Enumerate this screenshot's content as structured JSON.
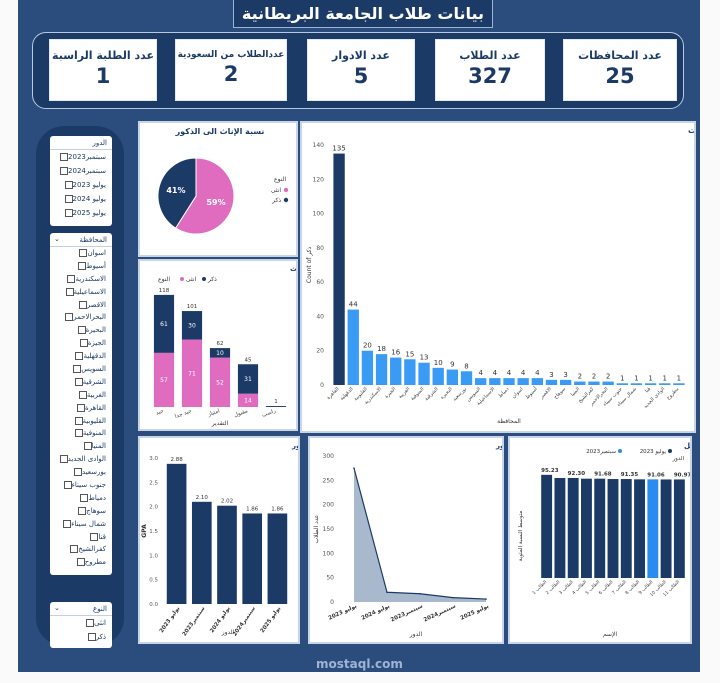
{
  "title": "بيانات طلاب الجامعة البريطانية",
  "kpis": [
    {
      "label": "عدد المحافظات",
      "value": "25"
    },
    {
      "label": "عدد الطلاب",
      "value": "327"
    },
    {
      "label": "عدد الادوار",
      "value": "5"
    },
    {
      "label": "عددالطلاب من السعودية",
      "value": "2"
    },
    {
      "label": "عدد الطلبة الراسبة",
      "value": "1"
    }
  ],
  "slicer_round": {
    "header": "الدور",
    "items": [
      "سبتمبر2023",
      "سبتمبر2024",
      "يوليو 2023",
      "يوليو 2024",
      "يوليو 2025"
    ]
  },
  "slicer_gov": {
    "header": "المحافظة",
    "items": [
      "اسوان",
      "أسيوط",
      "الاسكندرية",
      "الاسماعيلية",
      "الاقصر",
      "البحرالاحمر",
      "البحيرة",
      "الجيزة",
      "الدقهلية",
      "السويس",
      "الشرقية",
      "الغربية",
      "القاهرة",
      "القليوبية",
      "المنوفية",
      "المنيا",
      "الوادى الجديد",
      "بورسعيد",
      "جنوب سيناء",
      "دمياط",
      "سوهاج",
      "شمال سيناء",
      "قنا",
      "كفرالشيخ",
      "مطروح"
    ]
  },
  "slicer_branch": {
    "header": "النوع",
    "items": [
      "انثى",
      "ذكر"
    ]
  },
  "colors": {
    "navy": "#1b3a66",
    "pink": "#e06cc0",
    "blue": "#2b8cf0",
    "accent": "#3a9bf5"
  },
  "watermark": "mostaql.com",
  "chart_data": [
    {
      "type": "pie",
      "title": "نسبة الإناث الى الذكور",
      "legend_title": "النوع",
      "slices": [
        {
          "name": "انثى",
          "value": 59,
          "label": "59%"
        },
        {
          "name": "ذكر",
          "value": 41,
          "label": "41%"
        }
      ]
    },
    {
      "type": "bar",
      "title": "اعداد الطلبة في المحافظات",
      "xlabel": "المحافظة",
      "ylabel": "Count of ذكر",
      "ylim": [
        0,
        140
      ],
      "yticks": [
        0,
        20,
        40,
        60,
        80,
        100,
        120,
        140
      ],
      "categories": [
        "القاهرة",
        "الدقهلية",
        "القليوبية",
        "الاسكندرية",
        "الجيزة",
        "الغربية",
        "المنوفية",
        "الشرقية",
        "البحيرة",
        "بورسعيد",
        "السويس",
        "الاسماعيلية",
        "دمياط",
        "اسوان",
        "أسيوط",
        "الاقصر",
        "سوهاج",
        "المنيا",
        "كفرالشيخ",
        "البحرالاحمر",
        "جنوب سيناء",
        "شمال سيناء",
        "قنا",
        "الوادى الجديد",
        "مطروح"
      ],
      "values": [
        135,
        44,
        20,
        18,
        16,
        15,
        13,
        10,
        9,
        8,
        4,
        4,
        4,
        4,
        4,
        3,
        3,
        2,
        2,
        2,
        1,
        1,
        1,
        1,
        1
      ]
    },
    {
      "type": "bar",
      "title": "التقديرات في الذكور والإناث",
      "xlabel": "التقدير",
      "legend_title": "النوع",
      "categories": [
        "جيد",
        "جيد جدا",
        "امتياز",
        "مقبول",
        "راسب"
      ],
      "totals": [
        118,
        101,
        62,
        45,
        1
      ],
      "series": [
        {
          "name": "انثى",
          "values": [
            57,
            71,
            52,
            14,
            0
          ]
        },
        {
          "name": "ذكر",
          "values": [
            61,
            30,
            10,
            31,
            1
          ]
        }
      ]
    },
    {
      "type": "bar",
      "title": "متوسط التقديرات في كل دور",
      "xlabel": "الدور",
      "ylabel": "GPA",
      "ylim": [
        0,
        3.0
      ],
      "yticks": [
        0.0,
        0.5,
        1.0,
        1.5,
        2.0,
        2.5,
        3.0
      ],
      "categories": [
        "يوليو 2023",
        "سبتمبر2023",
        "يوليو 2024",
        "سبتمبر2024",
        "يوليو 2025"
      ],
      "values": [
        2.88,
        2.1,
        2.02,
        1.86,
        1.86
      ],
      "labels": [
        "2.88",
        "2.10",
        "2.02",
        "1.86",
        "1.86"
      ]
    },
    {
      "type": "area",
      "title": "عدد الطلاب في كل دور",
      "xlabel": "الدور",
      "ylabel": "عدد الطلاب",
      "ylim": [
        0,
        300
      ],
      "yticks": [
        0,
        50,
        100,
        150,
        200,
        250,
        300
      ],
      "categories": [
        "يوليو 2023",
        "يوليو 2024",
        "سبتمبر2023",
        "سبتمبر2024",
        "يوليو 2025"
      ],
      "values": [
        275,
        20,
        17,
        9,
        6
      ]
    },
    {
      "type": "bar",
      "title": "الطلاب الاوائل",
      "xlabel": "الإسم",
      "ylabel": "متوسط النسبة المئوية",
      "legend_title": "الدور",
      "legend": [
        "يوليو 2023",
        "سبتمبر2023"
      ],
      "categories": [
        "الطالب 1",
        "الطالب 2",
        "الطالب 3",
        "الطالب 4",
        "الطالب 5",
        "الطالب 6",
        "الطالب 7",
        "الطالب 8",
        "الطالب 9",
        "الطالب 10",
        "الطالب 11"
      ],
      "values": [
        95.23,
        92.3,
        92.3,
        91.68,
        91.68,
        91.35,
        91.35,
        91.06,
        91.06,
        90.97,
        90.97
      ],
      "labels": [
        "95.23",
        "",
        "92.30",
        "",
        "91.68",
        "",
        "91.35",
        "",
        "91.06",
        "",
        "90.97"
      ],
      "series_index": [
        0,
        0,
        0,
        0,
        0,
        0,
        0,
        0,
        1,
        0,
        0
      ]
    }
  ]
}
